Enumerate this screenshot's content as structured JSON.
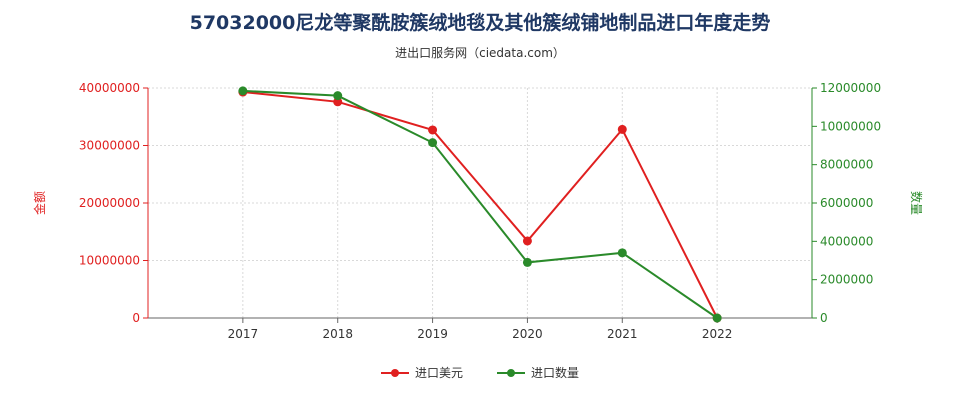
{
  "title": "57032000尼龙等聚酰胺簇绒地毯及其他簇绒铺地制品进口年度走势",
  "subtitle": "进出口服务网（ciedata.com）",
  "colors": {
    "left_axis": "#e02020",
    "right_axis": "#2a8a2a",
    "title": "#1f3864"
  },
  "chart_data": {
    "type": "line",
    "categories": [
      "2017",
      "2018",
      "2019",
      "2020",
      "2021",
      "2022"
    ],
    "left_ylabel": "金额",
    "right_ylabel": "数量",
    "left_ylim": [
      0,
      40000000
    ],
    "right_ylim": [
      0,
      12000000
    ],
    "left_ticks": [
      "0",
      "10000000",
      "20000000",
      "30000000",
      "40000000"
    ],
    "right_ticks": [
      "0",
      "2000000",
      "4000000",
      "6000000",
      "8000000",
      "10000000",
      "12000000"
    ],
    "grid": true,
    "legend_position": "bottom",
    "series": [
      {
        "name": "进口美元",
        "axis": "left",
        "color": "#e02020",
        "values": [
          39300000,
          37600000,
          32700000,
          13400000,
          32800000,
          0
        ]
      },
      {
        "name": "进口数量",
        "axis": "right",
        "color": "#2a8a2a",
        "values": [
          11850000,
          11600000,
          9150000,
          2900000,
          3400000,
          0
        ]
      }
    ]
  }
}
